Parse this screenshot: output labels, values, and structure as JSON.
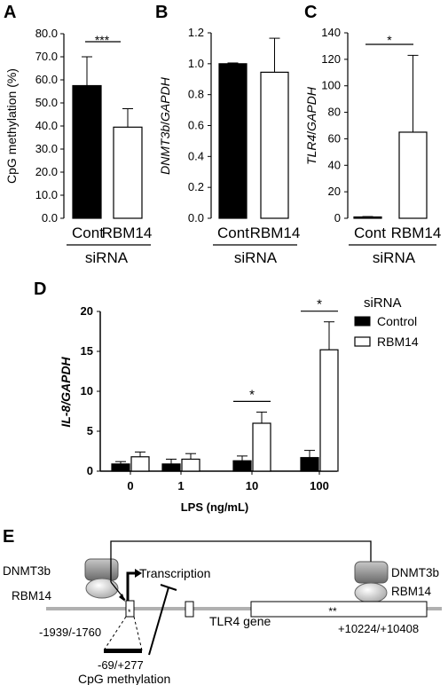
{
  "colors": {
    "control": "#000000",
    "rbm14": "#ffffff",
    "axis": "#000000",
    "gene_line": "#b0b0b0"
  },
  "chart_data": [
    {
      "panel": "A",
      "type": "bar",
      "ylabel": "CpG methylation (%)",
      "ylim": [
        0,
        80
      ],
      "yticks": [
        "0.0",
        "10.0",
        "20.0",
        "30.0",
        "40.0",
        "50.0",
        "60.0",
        "70.0",
        "80.0"
      ],
      "categories": [
        "Cont",
        "RBM14"
      ],
      "values": [
        57.5,
        39.5
      ],
      "errors": [
        12.5,
        8.0
      ],
      "group_label": "siRNA",
      "significance": [
        {
          "between": [
            0,
            1
          ],
          "label": "***"
        }
      ]
    },
    {
      "panel": "B",
      "type": "bar",
      "ylabel_gene": "DNMT3b",
      "ylabel_sep": "/",
      "ylabel_ref": "GAPDH",
      "ylim": [
        0,
        1.2
      ],
      "yticks": [
        "0.0",
        "0.2",
        "0.4",
        "0.6",
        "0.8",
        "1.0",
        "1.2"
      ],
      "categories": [
        "Cont",
        "RBM14"
      ],
      "values": [
        1.0,
        0.945
      ],
      "errors": [
        0.005,
        0.22
      ],
      "group_label": "siRNA",
      "significance": []
    },
    {
      "panel": "C",
      "type": "bar",
      "ylabel_gene": "TLR4",
      "ylabel_sep": "/",
      "ylabel_ref": "GAPDH",
      "ylim": [
        0,
        140
      ],
      "yticks": [
        "0",
        "20",
        "40",
        "60",
        "80",
        "100",
        "120",
        "140"
      ],
      "categories": [
        "Cont",
        "RBM14"
      ],
      "values": [
        1.0,
        65.0
      ],
      "errors": [
        0.3,
        58.0
      ],
      "group_label": "siRNA",
      "significance": [
        {
          "between": [
            0,
            1
          ],
          "label": "*"
        }
      ]
    },
    {
      "panel": "D",
      "type": "bar",
      "ylabel": "IL-8/GAPDH",
      "xlabel": "LPS (ng/mL)",
      "ylim": [
        0,
        20
      ],
      "yticks": [
        "0",
        "5",
        "10",
        "15",
        "20"
      ],
      "categories": [
        "0",
        "1",
        "10",
        "100"
      ],
      "legend_title": "siRNA",
      "series": [
        {
          "name": "Control",
          "values": [
            0.9,
            0.9,
            1.3,
            1.7
          ],
          "errors": [
            0.3,
            0.6,
            0.6,
            0.9
          ]
        },
        {
          "name": "RBM14",
          "values": [
            1.8,
            1.5,
            6.0,
            15.2
          ],
          "errors": [
            0.6,
            0.7,
            1.4,
            3.5
          ]
        }
      ],
      "significance": [
        {
          "category": 2,
          "label": "*"
        },
        {
          "category": 3,
          "label": "*"
        }
      ]
    }
  ],
  "diagram": {
    "panel": "E",
    "protein_left_top": "DNMT3b",
    "protein_left_bottom": "RBM14",
    "protein_right_top": "DNMT3b",
    "protein_right_bottom": "RBM14",
    "transcription": "Transcription",
    "region_left": "-1939/-1760",
    "region_cpg": "-69/+277",
    "cpg_label": "CpG methylation",
    "gene_label": "TLR4 gene",
    "region_right": "+10224/+10408",
    "marker_left": "*",
    "marker_right": "**"
  }
}
